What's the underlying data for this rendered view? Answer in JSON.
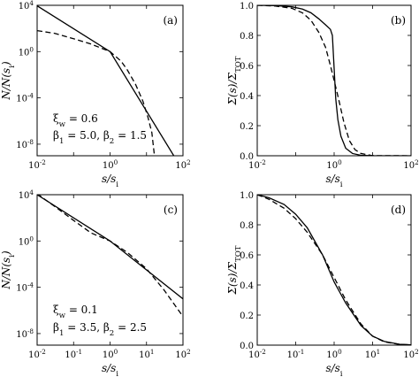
{
  "chart_data": [
    {
      "id": "a",
      "type": "line",
      "panel_label": "(a)",
      "xlabel": "s/s_i",
      "ylabel": "N/N(s_i)",
      "xscale": "log",
      "yscale": "log",
      "xlim": [
        0.01,
        100
      ],
      "ylim": [
        1e-09,
        10000.0
      ],
      "xticks": [
        {
          "v": 0.01,
          "label": "10^-2"
        },
        {
          "v": 1,
          "label": "10^0"
        },
        {
          "v": 100,
          "label": "10^2"
        }
      ],
      "xticks_minor": [
        0.1,
        10
      ],
      "yticks": [
        {
          "v": 1e-08,
          "label": "10^-8"
        },
        {
          "v": 0.0001,
          "label": "10^-4"
        },
        {
          "v": 1,
          "label": "10^0"
        },
        {
          "v": 10000.0,
          "label": "10^4"
        }
      ],
      "annotations": [
        "ξ_w = 0.6",
        "β_1 = 5.0,  β_2 = 1.5"
      ],
      "series": [
        {
          "style": "solid",
          "x": [
            0.01,
            1,
            56
          ],
          "y": [
            9000,
            1,
            1e-09
          ]
        },
        {
          "style": "dashed",
          "x": [
            0.01,
            0.03,
            0.1,
            0.3,
            1,
            2,
            3,
            5,
            8,
            11,
            14,
            16.5
          ],
          "y": [
            65,
            38,
            13,
            4.5,
            1,
            0.15,
            0.025,
            0.0015,
            5e-05,
            2e-06,
            1e-07,
            1e-09
          ]
        }
      ]
    },
    {
      "id": "b",
      "type": "line",
      "panel_label": "(b)",
      "xlabel": "s/s_i",
      "ylabel": "Σ(s)/Σ_TOT",
      "xscale": "log",
      "yscale": "linear",
      "xlim": [
        0.01,
        100
      ],
      "ylim": [
        0,
        1
      ],
      "xticks": [
        {
          "v": 0.01,
          "label": "10^-2"
        },
        {
          "v": 1,
          "label": "10^0"
        },
        {
          "v": 100,
          "label": "10^2"
        }
      ],
      "xticks_minor": [
        0.1,
        10
      ],
      "yticks": [
        {
          "v": 0,
          "label": "0.0"
        },
        {
          "v": 0.2,
          "label": "0.2"
        },
        {
          "v": 0.4,
          "label": "0.4"
        },
        {
          "v": 0.6,
          "label": "0.6"
        },
        {
          "v": 0.8,
          "label": "0.8"
        },
        {
          "v": 1,
          "label": "1.0"
        }
      ],
      "series": [
        {
          "style": "solid",
          "x": [
            0.01,
            0.03,
            0.08,
            0.15,
            0.25,
            0.4,
            0.6,
            0.8,
            0.9,
            1.0,
            1.1,
            1.25,
            1.5,
            2,
            3,
            5,
            10,
            100
          ],
          "y": [
            1.0,
            0.998,
            0.99,
            0.975,
            0.95,
            0.91,
            0.87,
            0.84,
            0.8,
            0.58,
            0.38,
            0.24,
            0.13,
            0.05,
            0.015,
            0.003,
            0.0003,
            0
          ]
        },
        {
          "style": "dashed",
          "x": [
            0.01,
            0.03,
            0.08,
            0.15,
            0.25,
            0.4,
            0.6,
            0.8,
            1.0,
            1.3,
            1.8,
            2.5,
            3.5,
            5,
            10,
            100
          ],
          "y": [
            1.0,
            0.995,
            0.98,
            0.95,
            0.9,
            0.82,
            0.72,
            0.6,
            0.5,
            0.38,
            0.22,
            0.1,
            0.04,
            0.015,
            0.001,
            0
          ]
        }
      ]
    },
    {
      "id": "c",
      "type": "line",
      "panel_label": "(c)",
      "xlabel": "s/s_i",
      "ylabel": "N/N(s_i)",
      "xscale": "log",
      "yscale": "log",
      "xlim": [
        0.01,
        100
      ],
      "ylim": [
        1e-09,
        10000.0
      ],
      "xticks": [
        {
          "v": 0.01,
          "label": "10^-2"
        },
        {
          "v": 0.1,
          "label": "10^-1"
        },
        {
          "v": 1,
          "label": "10^0"
        },
        {
          "v": 10,
          "label": "10^1"
        },
        {
          "v": 100,
          "label": "10^2"
        }
      ],
      "xticks_minor": [],
      "yticks": [
        {
          "v": 1e-08,
          "label": "10^-8"
        },
        {
          "v": 0.0001,
          "label": "10^-4"
        },
        {
          "v": 1,
          "label": "10^0"
        },
        {
          "v": 10000.0,
          "label": "10^4"
        }
      ],
      "annotations": [
        "ξ_w = 0.1",
        "β_1 = 3.5,  β_2 = 2.5"
      ],
      "series": [
        {
          "style": "solid",
          "x": [
            0.01,
            1,
            100
          ],
          "y": [
            10000,
            1,
            1e-05
          ]
        },
        {
          "style": "dashed",
          "x": [
            0.01,
            0.03,
            0.1,
            0.3,
            1,
            3,
            10,
            30,
            100
          ],
          "y": [
            12000,
            1000,
            60,
            5,
            1,
            0.1,
            0.004,
            6e-05,
            3e-07
          ]
        }
      ]
    },
    {
      "id": "d",
      "type": "line",
      "panel_label": "(d)",
      "xlabel": "s/s_i",
      "ylabel": "Σ(s)/Σ_TOT",
      "xscale": "log",
      "yscale": "linear",
      "xlim": [
        0.01,
        100
      ],
      "ylim": [
        0,
        1
      ],
      "xticks": [
        {
          "v": 0.01,
          "label": "10^-2"
        },
        {
          "v": 0.1,
          "label": "10^-1"
        },
        {
          "v": 1,
          "label": "10^0"
        },
        {
          "v": 10,
          "label": "10^1"
        },
        {
          "v": 100,
          "label": "10^2"
        }
      ],
      "xticks_minor": [],
      "yticks": [
        {
          "v": 0,
          "label": "0.0"
        },
        {
          "v": 0.2,
          "label": "0.2"
        },
        {
          "v": 0.4,
          "label": "0.4"
        },
        {
          "v": 0.6,
          "label": "0.6"
        },
        {
          "v": 0.8,
          "label": "0.8"
        },
        {
          "v": 1,
          "label": "1.0"
        }
      ],
      "series": [
        {
          "style": "solid",
          "x": [
            0.01,
            0.02,
            0.05,
            0.1,
            0.2,
            0.5,
            1,
            2,
            5,
            10,
            20,
            50,
            100
          ],
          "y": [
            1.0,
            0.98,
            0.935,
            0.87,
            0.78,
            0.6,
            0.42,
            0.28,
            0.13,
            0.06,
            0.025,
            0.006,
            0.002
          ]
        },
        {
          "style": "dashed",
          "x": [
            0.01,
            0.02,
            0.05,
            0.1,
            0.2,
            0.5,
            1,
            2,
            5,
            10,
            20,
            50,
            100
          ],
          "y": [
            1.0,
            0.97,
            0.91,
            0.84,
            0.75,
            0.6,
            0.45,
            0.3,
            0.14,
            0.06,
            0.022,
            0.005,
            0.002
          ]
        }
      ]
    }
  ]
}
